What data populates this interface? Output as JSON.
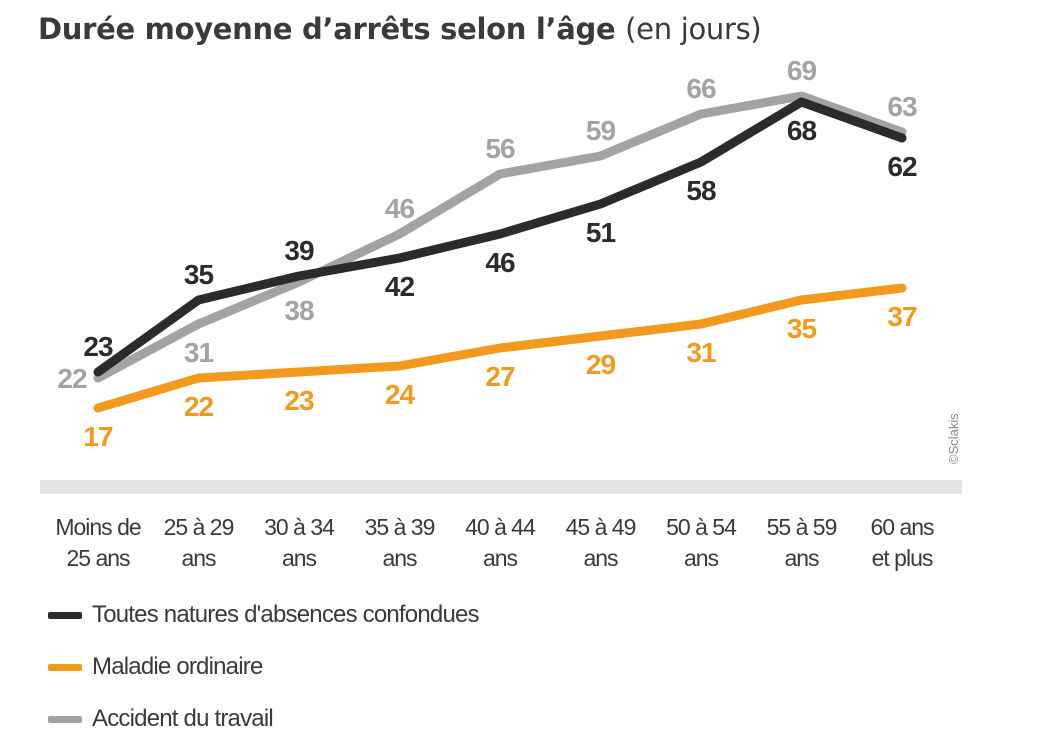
{
  "chart_data": {
    "type": "line",
    "title": "Durée moyenne d’arrêts selon l’âge",
    "subtitle": "(en jours)",
    "categories": [
      [
        "Moins de",
        "25 ans"
      ],
      [
        "25 à 29",
        "ans"
      ],
      [
        "30 à 34",
        "ans"
      ],
      [
        "35 à 39",
        "ans"
      ],
      [
        "40 à 44",
        "ans"
      ],
      [
        "45 à 49",
        "ans"
      ],
      [
        "50 à 54",
        "ans"
      ],
      [
        "55 à 59",
        "ans"
      ],
      [
        "60 ans",
        "et plus"
      ]
    ],
    "series": [
      {
        "name": "Toutes natures d'absences confondues",
        "color": "#2b2b2b",
        "values": [
          23,
          35,
          39,
          42,
          46,
          51,
          58,
          68,
          62
        ],
        "labels": [
          "23",
          "35",
          "39",
          "42",
          "46",
          "51",
          "58",
          "68",
          "62"
        ],
        "label_placement": [
          "above",
          "above",
          "above",
          "below",
          "below",
          "below",
          "below",
          "below",
          "below"
        ]
      },
      {
        "name": "Maladie ordinaire",
        "color": "#f39a1e",
        "values": [
          17,
          22,
          23,
          24,
          27,
          29,
          31,
          35,
          37
        ],
        "labels": [
          "17",
          "22",
          "23",
          "24",
          "27",
          "29",
          "31",
          "35",
          "37"
        ],
        "label_placement": [
          "below",
          "below",
          "below",
          "below",
          "below",
          "below",
          "below",
          "below",
          "below"
        ]
      },
      {
        "name": "Accident du travail",
        "color": "#a3a3a3",
        "values": [
          22,
          31,
          38,
          46,
          56,
          59,
          66,
          69,
          63
        ],
        "labels": [
          "22",
          "31",
          "38",
          "46",
          "56",
          "59",
          "66",
          "69",
          "63"
        ],
        "label_placement": [
          "left",
          "below",
          "below",
          "above",
          "above",
          "above",
          "above",
          "above",
          "above"
        ]
      }
    ],
    "ylim": [
      5,
      72
    ],
    "grid": false,
    "legend_position": "bottom-left",
    "credit": "©Sclakis"
  }
}
